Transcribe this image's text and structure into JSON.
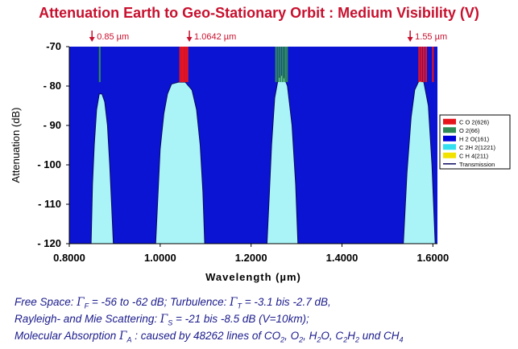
{
  "title": "Attenuation Earth to Geo-Stationary Orbit : Medium Visibility (V)",
  "chart_data": {
    "type": "area",
    "xlabel": "Wavelength (µm)",
    "ylabel": "Attenuation (dB)",
    "xlim": [
      0.8,
      1.61
    ],
    "ylim": [
      -120,
      -70
    ],
    "x_ticks": [
      0.8,
      1.0,
      1.2,
      1.4,
      1.6
    ],
    "x_tick_labels": [
      "0.8000",
      "1.0000",
      "1.2000",
      "1.4000",
      "1.6000"
    ],
    "y_ticks": [
      -70,
      -80,
      -90,
      -100,
      -110,
      -120
    ],
    "y_tick_labels": [
      "-70",
      "- 80",
      "- 90",
      "- 100",
      "- 110",
      "- 120"
    ],
    "annotations": [
      {
        "x": 0.85,
        "text": "0.85 µm"
      },
      {
        "x": 1.0642,
        "text": "1.0642 µm"
      },
      {
        "x": 1.55,
        "text": "1.55 µm"
      }
    ],
    "legend": {
      "position": "right",
      "entries": [
        {
          "name": "C O 2(626)",
          "color": "#e8141c"
        },
        {
          "name": "O 2(66)",
          "color": "#2e8b57"
        },
        {
          "name": "H 2 O(161)",
          "color": "#0000d8"
        },
        {
          "name": "C 2H 2(1221)",
          "color": "#33e0f0"
        },
        {
          "name": "C H 4(211)",
          "color": "#f2e200"
        },
        {
          "name": "Transmission",
          "color": "#0a0a60"
        }
      ]
    },
    "background_color": "#0a14d2",
    "transmission_windows": [
      {
        "x": [
          0.848,
          0.851,
          0.855,
          0.86,
          0.866,
          0.872,
          0.878,
          0.884,
          0.889,
          0.893,
          0.897
        ],
        "y": [
          -120,
          -105,
          -95,
          -86,
          -82,
          -82,
          -84,
          -90,
          -100,
          -110,
          -120
        ]
      },
      {
        "x": [
          0.99,
          0.995,
          1.0,
          1.008,
          1.016,
          1.025,
          1.04,
          1.055,
          1.07,
          1.08,
          1.088,
          1.094,
          1.098
        ],
        "y": [
          -120,
          -108,
          -96,
          -87,
          -82,
          -79.5,
          -79,
          -79,
          -81,
          -86,
          -95,
          -107,
          -120
        ]
      },
      {
        "x": [
          1.235,
          1.24,
          1.245,
          1.252,
          1.26,
          1.27,
          1.28,
          1.29,
          1.298,
          1.303
        ],
        "y": [
          -120,
          -108,
          -95,
          -83,
          -78,
          -77,
          -80,
          -90,
          -105,
          -120
        ]
      },
      {
        "x": [
          1.535,
          1.543,
          1.552,
          1.56,
          1.57,
          1.58,
          1.59,
          1.598,
          1.605
        ],
        "y": [
          -120,
          -102,
          -88,
          -81,
          -78.5,
          -79,
          -85,
          -100,
          -120
        ]
      }
    ],
    "absorption_lines": [
      {
        "x": 0.867,
        "species": "O 2(66)"
      },
      {
        "x": 1.044,
        "species": "C O 2(626)"
      },
      {
        "x": 1.048,
        "species": "C O 2(626)"
      },
      {
        "x": 1.052,
        "species": "C O 2(626)"
      },
      {
        "x": 1.056,
        "species": "C O 2(626)"
      },
      {
        "x": 1.06,
        "species": "C O 2(626)"
      },
      {
        "x": 1.255,
        "species": "O 2(66)"
      },
      {
        "x": 1.26,
        "species": "O 2(66)"
      },
      {
        "x": 1.265,
        "species": "O 2(66)"
      },
      {
        "x": 1.27,
        "species": "O 2(66)"
      },
      {
        "x": 1.275,
        "species": "O 2(66)"
      },
      {
        "x": 1.279,
        "species": "O 2(66)"
      },
      {
        "x": 1.57,
        "species": "C O 2(626)"
      },
      {
        "x": 1.575,
        "species": "C O 2(626)"
      },
      {
        "x": 1.58,
        "species": "C O 2(626)"
      },
      {
        "x": 1.585,
        "species": "C O 2(626)"
      },
      {
        "x": 1.6,
        "species": "C O 2(626)"
      }
    ]
  },
  "caption": {
    "line1": {
      "free_space_label": "Free Space: ",
      "gamma": "Γ",
      "free_space_sub": "F",
      "free_space_value": " = -56 to -62 dB; Turbulence: ",
      "turb_sub": "T",
      "turb_value": " = -3.1 bis -2.7 dB,"
    },
    "line2": {
      "label": "Rayleigh- and Mie Scattering:   ",
      "sub": "S",
      "value": " = -21 bis -8.5 dB (V=10km);"
    },
    "line3": {
      "label": "Molecular Absorption ",
      "sub": "A",
      "value": " : caused by 48262 lines of CO",
      "co2_sub": "2",
      "o2": ", O",
      "o2_sub": "2",
      "h2o": ", H",
      "h2o_sub": "2",
      "h2o_tail": "O, C",
      "c2h2_sub1": "2",
      "c2h2_mid": "H",
      "c2h2_sub2": "2",
      "tail": " und CH",
      "ch4_sub": "4"
    }
  }
}
